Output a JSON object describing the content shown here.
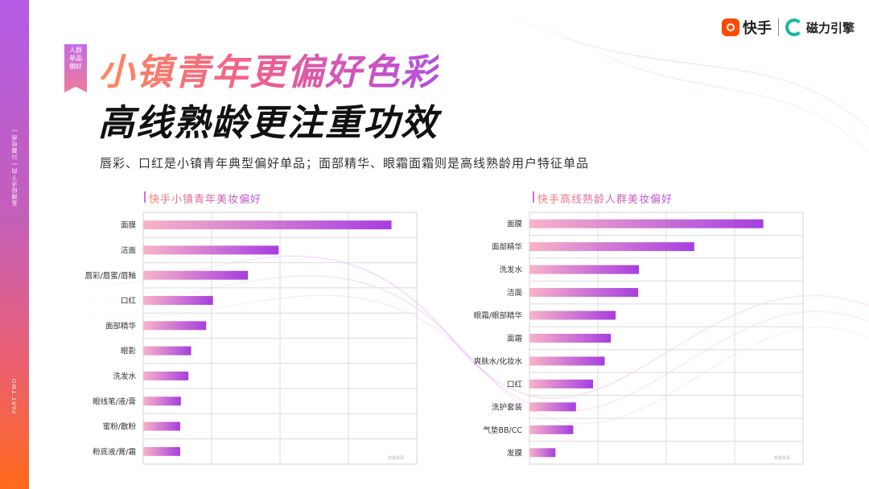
{
  "header": {
    "tag_lines": [
      "人群",
      "单品",
      "偏好"
    ],
    "title_line1": "小镇青年更偏好色彩",
    "title_line2": "高线熟龄更注重功效",
    "subtitle": "唇彩、口红是小镇青年典型偏好单品；面部精华、眼霜面霜则是高线熟龄用户特征单品"
  },
  "brand": {
    "kuaishou": "快手",
    "cili": "磁力引擎"
  },
  "sidebar": {
    "vertical_text_top": "直播经济下的 | 兴趣电商 |",
    "vertical_text_bottom": "PART TWO"
  },
  "colors": {
    "bar_start": "#f9b3c8",
    "bar_end": "#a63ee0",
    "accent_orange": "#ff6a1a",
    "accent_purple": "#b44ee0"
  },
  "chart_data": [
    {
      "type": "bar",
      "orientation": "horizontal",
      "title": "快手小镇青年美妆偏好",
      "categories": [
        "面膜",
        "洁面",
        "唇彩/唇蜜/唇釉",
        "口红",
        "面部精华",
        "眼影",
        "洗发水",
        "眼线笔/液/膏",
        "蜜粉/散粉",
        "粉底液/膏/霜"
      ],
      "values": [
        3.63,
        1.98,
        1.53,
        1.02,
        0.92,
        0.7,
        0.66,
        0.55,
        0.54,
        0.54
      ],
      "xlim": [
        0,
        4
      ],
      "grid": true,
      "watermark": "数据来源"
    },
    {
      "type": "bar",
      "orientation": "horizontal",
      "title": "快手高线熟龄人群美妆偏好",
      "categories": [
        "面膜",
        "面部精华",
        "洗发水",
        "洁面",
        "眼霜/眼部精华",
        "面霜",
        "爽肤水/化妆水",
        "口红",
        "洗护套装",
        "气垫BB/CC",
        "发膜"
      ],
      "values": [
        3.42,
        2.41,
        1.6,
        1.59,
        1.26,
        1.19,
        1.1,
        0.93,
        0.68,
        0.64,
        0.38
      ],
      "xlim": [
        0,
        4
      ],
      "grid": true,
      "watermark": "数据来源"
    }
  ]
}
